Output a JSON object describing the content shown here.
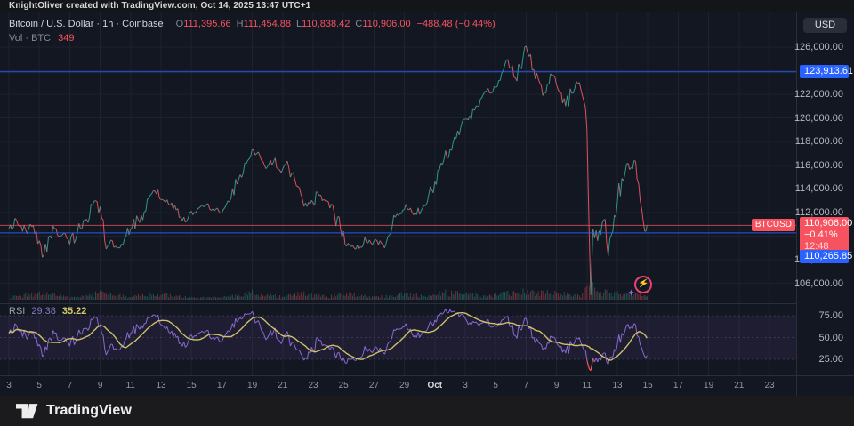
{
  "attribution": "KnightOliver created with TradingView.com, Oct 14, 2025 13:47 UTC+1",
  "legend": {
    "title": "Bitcoin / U.S. Dollar · 1h · Coinbase",
    "o_label": "O",
    "o": "111,395.66",
    "h_label": "H",
    "h": "111,454.88",
    "l_label": "L",
    "l": "110,838.42",
    "c_label": "C",
    "c": "110,906.00",
    "change": "−488.48 (−0.44%)",
    "vol_label": "Vol · BTC",
    "vol": "349"
  },
  "rsi_legend": {
    "label": "RSI",
    "value": "29.38",
    "ma_value": "35.22"
  },
  "price_scale": {
    "currency": "USD",
    "ticks": [
      {
        "label": "126,000.00",
        "price": 126000
      },
      {
        "label": "122,000.00",
        "price": 122000
      },
      {
        "label": "120,000.00",
        "price": 120000
      },
      {
        "label": "118,000.00",
        "price": 118000
      },
      {
        "label": "116,000.00",
        "price": 116000
      },
      {
        "label": "114,000.00",
        "price": 114000
      },
      {
        "label": "112,000.00",
        "price": 112000
      },
      {
        "label": "108,000.00",
        "price": 108000
      },
      {
        "label": "106,000.00",
        "price": 106000
      }
    ],
    "alert_upper": {
      "label": "123,913.61",
      "price": 123913.61
    },
    "last": {
      "label": "110,906.00",
      "change": "−0.41%",
      "time": "12:48",
      "price": 110906
    },
    "alert_lower": {
      "label": "110,265.85",
      "price": 110265.85
    },
    "symbol_badge": "BTCUSD"
  },
  "rsi_scale": {
    "ticks": [
      {
        "label": "75.00",
        "value": 75
      },
      {
        "label": "50.00",
        "value": 50
      },
      {
        "label": "25.00",
        "value": 25
      }
    ]
  },
  "time_axis": {
    "ticks": [
      {
        "label": "3",
        "day": 0
      },
      {
        "label": "5",
        "day": 2
      },
      {
        "label": "7",
        "day": 4
      },
      {
        "label": "9",
        "day": 6
      },
      {
        "label": "11",
        "day": 8
      },
      {
        "label": "13",
        "day": 10
      },
      {
        "label": "15",
        "day": 12
      },
      {
        "label": "17",
        "day": 14
      },
      {
        "label": "19",
        "day": 16
      },
      {
        "label": "21",
        "day": 18
      },
      {
        "label": "23",
        "day": 20
      },
      {
        "label": "25",
        "day": 22
      },
      {
        "label": "27",
        "day": 24
      },
      {
        "label": "29",
        "day": 26
      },
      {
        "label": "Oct",
        "day": 28,
        "month": true
      },
      {
        "label": "3",
        "day": 30
      },
      {
        "label": "5",
        "day": 32
      },
      {
        "label": "7",
        "day": 34
      },
      {
        "label": "9",
        "day": 36
      },
      {
        "label": "11",
        "day": 38
      },
      {
        "label": "13",
        "day": 40
      },
      {
        "label": "15",
        "day": 42
      },
      {
        "label": "17",
        "day": 44
      },
      {
        "label": "19",
        "day": 46
      },
      {
        "label": "21",
        "day": 48
      },
      {
        "label": "23",
        "day": 50
      }
    ]
  },
  "footer": {
    "brand": "TradingView"
  },
  "colors": {
    "background": "#131722",
    "grid": "rgba(240,243,250,0.055)",
    "up": "#2f9e8f",
    "down": "#e5545e",
    "alert_line": "#2962ff",
    "last_line": "#f7525f",
    "rsi_line": "#8e6fd8",
    "rsi_oversold_segment": "#f7525f",
    "rsi_ma_line": "#d6c96d",
    "rsi_band_fill": "rgba(126,87,194,0.10)",
    "rsi_band_edge": "rgba(150,145,180,0.45)",
    "vol_up": "rgba(47,158,143,0.45)",
    "vol_down": "rgba(229,84,94,0.45)"
  },
  "chart_data": {
    "type": "candlestick",
    "symbol": "BTCUSD",
    "exchange": "Coinbase",
    "interval": "1h",
    "title": "Bitcoin / U.S. Dollar",
    "x_range": [
      "Sep 3, 2025",
      "Oct 24, 2025"
    ],
    "data_end": "Oct 14, 2025 12:48",
    "price_ylim": [
      104500,
      127500
    ],
    "price_unit": "USD_thousands",
    "levels": {
      "alert_upper": 123913.61,
      "alert_lower": 110265.85,
      "last_price": 110906
    },
    "price_series": [
      [
        0,
        110.6
      ],
      [
        0.4,
        111.5
      ],
      [
        0.8,
        110.9
      ],
      [
        1.2,
        110.2
      ],
      [
        1.6,
        110.9
      ],
      [
        2.0,
        109.6
      ],
      [
        2.3,
        108.4
      ],
      [
        2.6,
        109.9
      ],
      [
        3.0,
        110.6
      ],
      [
        3.5,
        110.1
      ],
      [
        4.0,
        109.3
      ],
      [
        4.5,
        110.3
      ],
      [
        5.0,
        111.3
      ],
      [
        5.5,
        112.6
      ],
      [
        5.8,
        112.9
      ],
      [
        6.1,
        111.5
      ],
      [
        6.4,
        108.9
      ],
      [
        6.8,
        109.6
      ],
      [
        7.2,
        109.0
      ],
      [
        7.6,
        109.8
      ],
      [
        8.0,
        110.6
      ],
      [
        8.5,
        111.4
      ],
      [
        9.0,
        112.1
      ],
      [
        9.4,
        113.6
      ],
      [
        9.8,
        113.9
      ],
      [
        10.2,
        113.0
      ],
      [
        10.6,
        112.6
      ],
      [
        11.0,
        112.2
      ],
      [
        11.4,
        111.3
      ],
      [
        11.8,
        111.6
      ],
      [
        12.2,
        112.0
      ],
      [
        12.6,
        112.5
      ],
      [
        13.0,
        112.7
      ],
      [
        13.4,
        112.3
      ],
      [
        13.8,
        112.1
      ],
      [
        14.2,
        112.4
      ],
      [
        14.6,
        113.2
      ],
      [
        15.0,
        114.4
      ],
      [
        15.4,
        115.3
      ],
      [
        15.7,
        116.4
      ],
      [
        16.0,
        117.4
      ],
      [
        16.3,
        117.0
      ],
      [
        16.6,
        116.4
      ],
      [
        17.0,
        115.9
      ],
      [
        17.4,
        116.3
      ],
      [
        17.8,
        115.6
      ],
      [
        18.2,
        116.1
      ],
      [
        18.6,
        115.3
      ],
      [
        19.0,
        114.2
      ],
      [
        19.3,
        113.1
      ],
      [
        19.6,
        112.5
      ],
      [
        20.0,
        112.8
      ],
      [
        20.3,
        113.7
      ],
      [
        20.7,
        113.1
      ],
      [
        21.0,
        112.9
      ],
      [
        21.4,
        111.9
      ],
      [
        21.8,
        110.6
      ],
      [
        22.1,
        109.3
      ],
      [
        22.5,
        109.1
      ],
      [
        23.0,
        108.9
      ],
      [
        23.4,
        109.9
      ],
      [
        23.8,
        109.4
      ],
      [
        24.2,
        109.6
      ],
      [
        24.6,
        109.2
      ],
      [
        25.0,
        110.1
      ],
      [
        25.4,
        111.6
      ],
      [
        25.8,
        111.9
      ],
      [
        26.1,
        112.7
      ],
      [
        26.5,
        112.0
      ],
      [
        26.8,
        111.8
      ],
      [
        27.2,
        112.4
      ],
      [
        27.6,
        113.5
      ],
      [
        28.0,
        114.6
      ],
      [
        28.3,
        115.6
      ],
      [
        28.6,
        116.5
      ],
      [
        29.0,
        117.4
      ],
      [
        29.3,
        118.4
      ],
      [
        29.7,
        119.2
      ],
      [
        30.0,
        119.9
      ],
      [
        30.3,
        120.2
      ],
      [
        30.7,
        121.0
      ],
      [
        31.0,
        121.6
      ],
      [
        31.4,
        122.3
      ],
      [
        31.7,
        122.1
      ],
      [
        32.0,
        122.6
      ],
      [
        32.4,
        123.8
      ],
      [
        32.7,
        124.9
      ],
      [
        33.0,
        124.2
      ],
      [
        33.3,
        123.4
      ],
      [
        33.6,
        124.3
      ],
      [
        34.0,
        126.1
      ],
      [
        34.2,
        125.2
      ],
      [
        34.5,
        124.1
      ],
      [
        34.8,
        123.3
      ],
      [
        35.1,
        121.9
      ],
      [
        35.4,
        122.9
      ],
      [
        35.7,
        123.6
      ],
      [
        36.0,
        122.8
      ],
      [
        36.3,
        122.2
      ],
      [
        36.6,
        121.0
      ],
      [
        37.0,
        122.1
      ],
      [
        37.3,
        123.1
      ],
      [
        37.6,
        122.4
      ],
      [
        37.8,
        121.4
      ],
      [
        38.0,
        119.0
      ],
      [
        38.15,
        110.0
      ],
      [
        38.25,
        105.0
      ],
      [
        38.4,
        110.6
      ],
      [
        38.7,
        109.6
      ],
      [
        39.0,
        111.1
      ],
      [
        39.2,
        111.4
      ],
      [
        39.4,
        108.3
      ],
      [
        39.7,
        110.4
      ],
      [
        40.0,
        112.9
      ],
      [
        40.3,
        114.9
      ],
      [
        40.6,
        116.1
      ],
      [
        40.9,
        115.8
      ],
      [
        41.1,
        116.4
      ],
      [
        41.3,
        114.8
      ],
      [
        41.6,
        112.3
      ],
      [
        41.8,
        110.4
      ],
      [
        41.95,
        110.9
      ]
    ],
    "rsi_series": {
      "overbought": 75,
      "midline": 50,
      "oversold": 25,
      "last": 29.38,
      "ma_last": 35.22,
      "points": [
        [
          0,
          55
        ],
        [
          0.4,
          66
        ],
        [
          0.8,
          58
        ],
        [
          1.2,
          48
        ],
        [
          1.6,
          56
        ],
        [
          2.0,
          42
        ],
        [
          2.3,
          30
        ],
        [
          2.6,
          48
        ],
        [
          3.0,
          55
        ],
        [
          3.5,
          48
        ],
        [
          4.0,
          40
        ],
        [
          4.5,
          52
        ],
        [
          5.0,
          60
        ],
        [
          5.5,
          70
        ],
        [
          5.8,
          72
        ],
        [
          6.1,
          55
        ],
        [
          6.4,
          30
        ],
        [
          6.8,
          42
        ],
        [
          7.2,
          36
        ],
        [
          7.6,
          46
        ],
        [
          8.0,
          55
        ],
        [
          8.5,
          62
        ],
        [
          9.0,
          66
        ],
        [
          9.4,
          74
        ],
        [
          9.8,
          76
        ],
        [
          10.2,
          62
        ],
        [
          10.6,
          55
        ],
        [
          11.0,
          50
        ],
        [
          11.4,
          40
        ],
        [
          11.8,
          46
        ],
        [
          12.2,
          52
        ],
        [
          12.6,
          56
        ],
        [
          13.0,
          58
        ],
        [
          13.4,
          50
        ],
        [
          13.8,
          47
        ],
        [
          14.2,
          52
        ],
        [
          14.6,
          60
        ],
        [
          15.0,
          68
        ],
        [
          15.4,
          73
        ],
        [
          15.7,
          77
        ],
        [
          16.0,
          80
        ],
        [
          16.3,
          68
        ],
        [
          16.6,
          58
        ],
        [
          17.0,
          50
        ],
        [
          17.4,
          57
        ],
        [
          17.8,
          46
        ],
        [
          18.2,
          54
        ],
        [
          18.6,
          44
        ],
        [
          19.0,
          36
        ],
        [
          19.3,
          28
        ],
        [
          19.6,
          25
        ],
        [
          20.0,
          35
        ],
        [
          20.3,
          50
        ],
        [
          20.7,
          42
        ],
        [
          21.0,
          40
        ],
        [
          21.4,
          33
        ],
        [
          21.8,
          26
        ],
        [
          22.1,
          21
        ],
        [
          22.5,
          25
        ],
        [
          23.0,
          24
        ],
        [
          23.4,
          40
        ],
        [
          23.8,
          34
        ],
        [
          24.2,
          38
        ],
        [
          24.6,
          33
        ],
        [
          25.0,
          45
        ],
        [
          25.4,
          58
        ],
        [
          25.8,
          60
        ],
        [
          26.1,
          66
        ],
        [
          26.5,
          54
        ],
        [
          26.8,
          50
        ],
        [
          27.2,
          56
        ],
        [
          27.6,
          64
        ],
        [
          28.0,
          70
        ],
        [
          28.3,
          75
        ],
        [
          28.6,
          79
        ],
        [
          29.0,
          82
        ],
        [
          29.3,
          80
        ],
        [
          29.7,
          76
        ],
        [
          30.0,
          72
        ],
        [
          30.3,
          67
        ],
        [
          30.7,
          68
        ],
        [
          31.0,
          66
        ],
        [
          31.4,
          68
        ],
        [
          31.7,
          62
        ],
        [
          32.0,
          63
        ],
        [
          32.4,
          70
        ],
        [
          32.7,
          74
        ],
        [
          33.0,
          62
        ],
        [
          33.3,
          52
        ],
        [
          33.6,
          60
        ],
        [
          34.0,
          72
        ],
        [
          34.2,
          60
        ],
        [
          34.5,
          50
        ],
        [
          34.8,
          45
        ],
        [
          35.1,
          36
        ],
        [
          35.4,
          44
        ],
        [
          35.7,
          50
        ],
        [
          36.0,
          44
        ],
        [
          36.3,
          40
        ],
        [
          36.6,
          32
        ],
        [
          37.0,
          42
        ],
        [
          37.3,
          50
        ],
        [
          37.6,
          44
        ],
        [
          37.8,
          36
        ],
        [
          38.0,
          24
        ],
        [
          38.15,
          14
        ],
        [
          38.25,
          12
        ],
        [
          38.4,
          26
        ],
        [
          38.7,
          22
        ],
        [
          39.0,
          30
        ],
        [
          39.2,
          32
        ],
        [
          39.4,
          19
        ],
        [
          39.7,
          28
        ],
        [
          40.0,
          42
        ],
        [
          40.3,
          55
        ],
        [
          40.6,
          64
        ],
        [
          40.9,
          62
        ],
        [
          41.1,
          66
        ],
        [
          41.3,
          52
        ],
        [
          41.6,
          38
        ],
        [
          41.8,
          28
        ],
        [
          41.95,
          29.38
        ]
      ]
    },
    "volume_profile": [
      [
        0,
        0.12
      ],
      [
        2.3,
        0.35
      ],
      [
        4,
        0.12
      ],
      [
        5.8,
        0.3
      ],
      [
        6.4,
        0.42
      ],
      [
        8,
        0.12
      ],
      [
        9.4,
        0.3
      ],
      [
        12,
        0.1
      ],
      [
        14,
        0.1
      ],
      [
        16,
        0.35
      ],
      [
        18,
        0.14
      ],
      [
        19.3,
        0.3
      ],
      [
        21,
        0.14
      ],
      [
        22.1,
        0.35
      ],
      [
        24,
        0.12
      ],
      [
        26.1,
        0.3
      ],
      [
        27.5,
        0.14
      ],
      [
        28.6,
        0.35
      ],
      [
        30,
        0.3
      ],
      [
        31.5,
        0.16
      ],
      [
        32.4,
        0.3
      ],
      [
        34,
        0.45
      ],
      [
        35.1,
        0.35
      ],
      [
        36.6,
        0.3
      ],
      [
        37.6,
        0.25
      ],
      [
        38.2,
        1.0
      ],
      [
        38.6,
        0.4
      ],
      [
        39.4,
        0.35
      ],
      [
        40.3,
        0.3
      ],
      [
        41.3,
        0.35
      ],
      [
        41.95,
        0.3
      ]
    ]
  }
}
